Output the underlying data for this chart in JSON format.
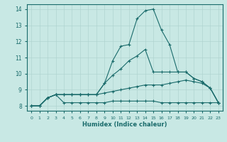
{
  "xlabel": "Humidex (Indice chaleur)",
  "xlim": [
    -0.5,
    23.5
  ],
  "ylim": [
    7.7,
    14.3
  ],
  "xticks": [
    0,
    1,
    2,
    3,
    4,
    5,
    6,
    7,
    8,
    9,
    10,
    11,
    12,
    13,
    14,
    15,
    16,
    17,
    18,
    19,
    20,
    21,
    22,
    23
  ],
  "yticks": [
    8,
    9,
    10,
    11,
    12,
    13,
    14
  ],
  "bg_color": "#c8e8e4",
  "line_color": "#1a6b6b",
  "grid_color": "#b0d4d0",
  "lines": [
    {
      "x": [
        0,
        1,
        2,
        3,
        4,
        5,
        6,
        7,
        8,
        9,
        10,
        11,
        12,
        13,
        14,
        15,
        16,
        17,
        18,
        19,
        20,
        21,
        22,
        23
      ],
      "y": [
        8.0,
        8.0,
        8.5,
        8.7,
        8.2,
        8.2,
        8.2,
        8.2,
        8.2,
        8.2,
        8.3,
        8.3,
        8.3,
        8.3,
        8.3,
        8.3,
        8.2,
        8.2,
        8.2,
        8.2,
        8.2,
        8.2,
        8.2,
        8.2
      ]
    },
    {
      "x": [
        0,
        1,
        2,
        3,
        4,
        5,
        6,
        7,
        8,
        9,
        10,
        11,
        12,
        13,
        14,
        15,
        16,
        17,
        18,
        19,
        20,
        21,
        22,
        23
      ],
      "y": [
        8.0,
        8.0,
        8.5,
        8.7,
        8.7,
        8.7,
        8.7,
        8.7,
        8.7,
        8.8,
        8.9,
        9.0,
        9.1,
        9.2,
        9.3,
        9.3,
        9.3,
        9.4,
        9.5,
        9.6,
        9.5,
        9.4,
        9.1,
        8.2
      ]
    },
    {
      "x": [
        0,
        1,
        2,
        3,
        4,
        5,
        6,
        7,
        8,
        9,
        10,
        11,
        12,
        13,
        14,
        15,
        16,
        17,
        18,
        19,
        20,
        21,
        22,
        23
      ],
      "y": [
        8.0,
        8.0,
        8.5,
        8.7,
        8.7,
        8.7,
        8.7,
        8.7,
        8.7,
        9.4,
        9.9,
        10.3,
        10.8,
        11.1,
        11.5,
        10.1,
        10.1,
        10.1,
        10.1,
        10.1,
        9.7,
        9.5,
        9.1,
        8.2
      ]
    },
    {
      "x": [
        0,
        1,
        2,
        3,
        4,
        5,
        6,
        7,
        8,
        9,
        10,
        11,
        12,
        13,
        14,
        15,
        16,
        17,
        18,
        19,
        20,
        21,
        22,
        23
      ],
      "y": [
        8.0,
        8.0,
        8.5,
        8.7,
        8.7,
        8.7,
        8.7,
        8.7,
        8.7,
        9.4,
        10.8,
        11.7,
        11.8,
        13.4,
        13.9,
        14.0,
        12.7,
        11.8,
        10.1,
        10.1,
        9.7,
        9.5,
        9.1,
        8.2
      ]
    }
  ]
}
